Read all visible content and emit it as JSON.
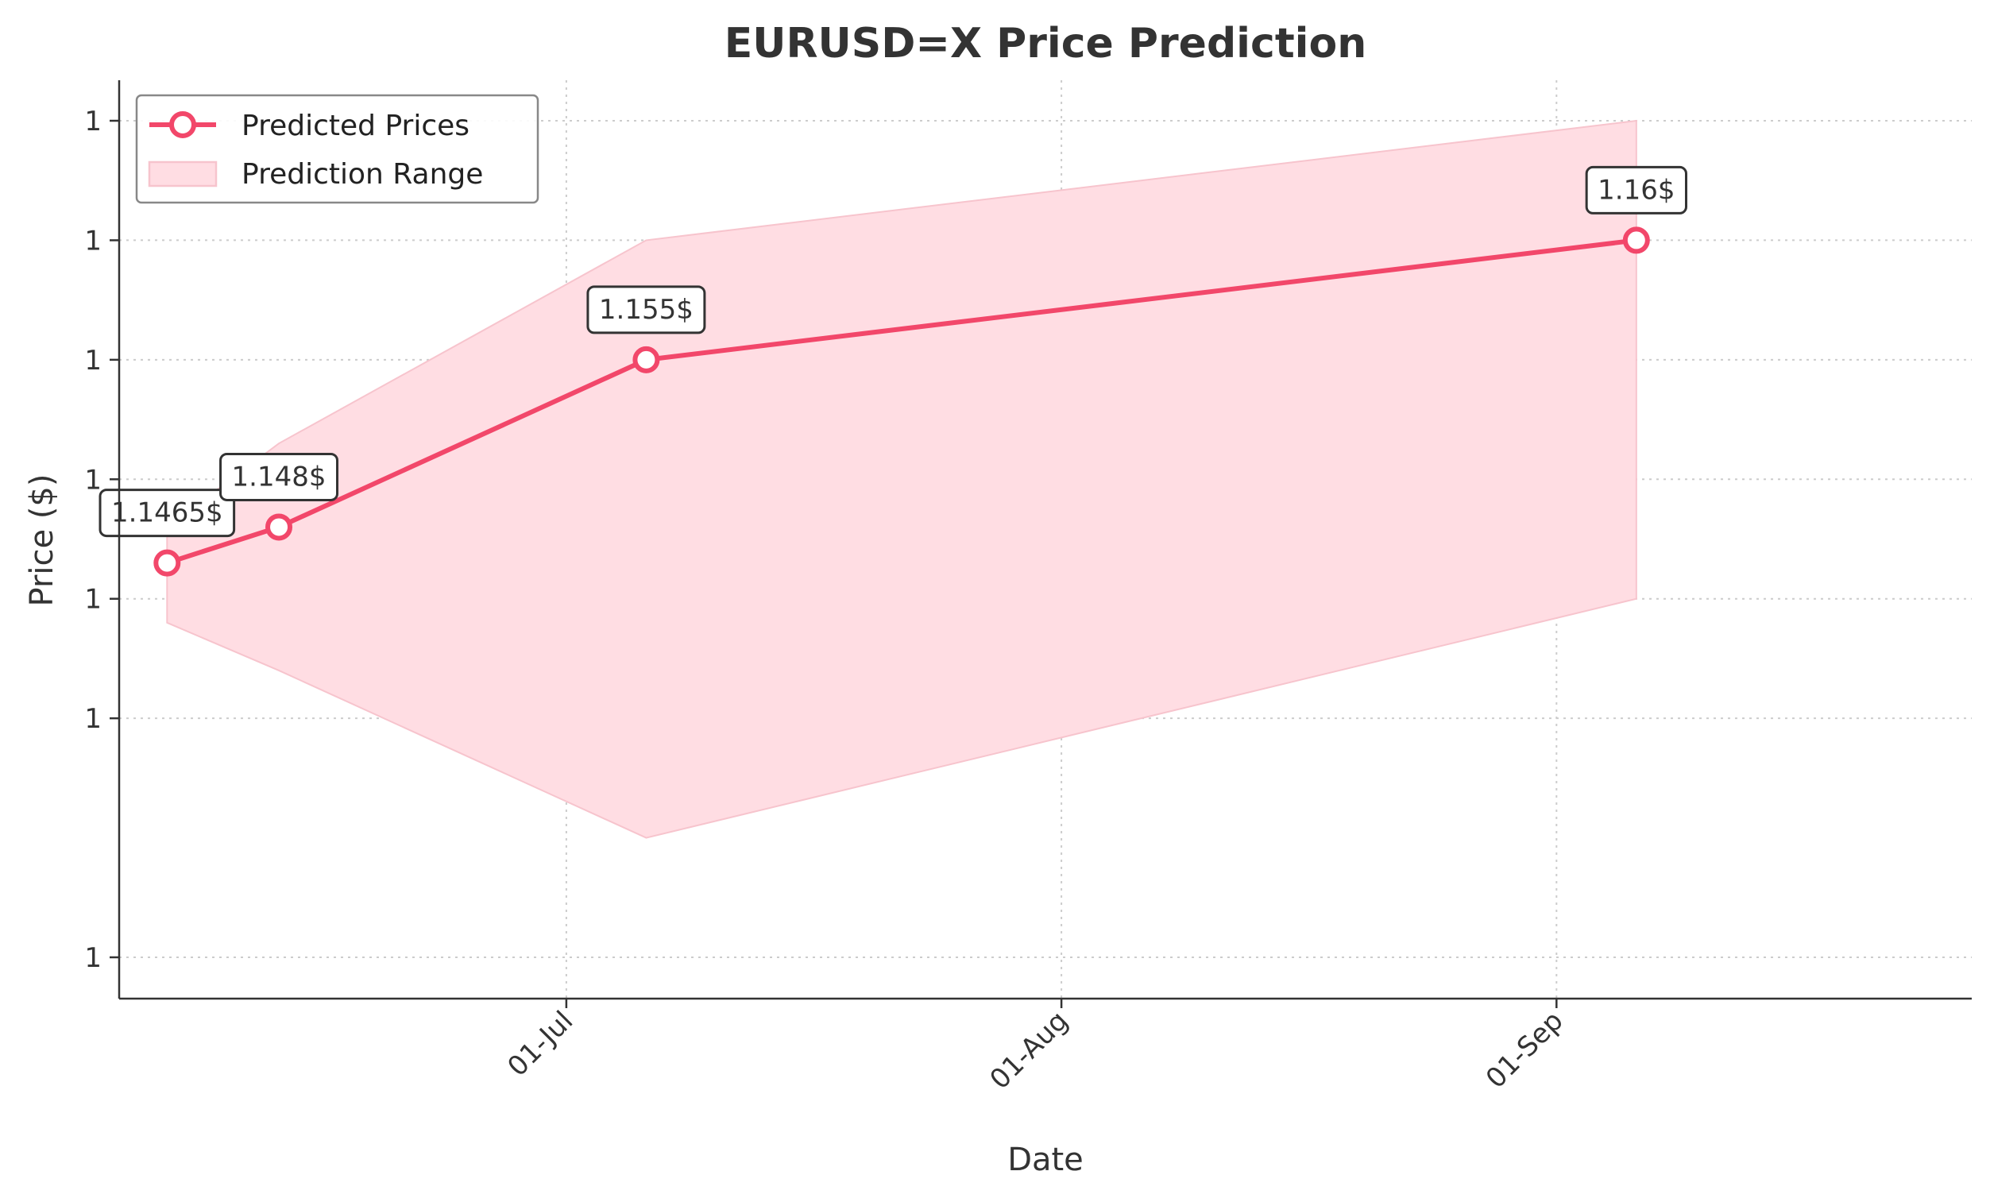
{
  "chart_data": {
    "type": "line",
    "title": "EURUSD=X Price Prediction",
    "xlabel": "Date",
    "ylabel": "Price ($)",
    "x_ticks": [
      {
        "date": "2025-07-01",
        "label": "01-Jul"
      },
      {
        "date": "2025-08-01",
        "label": "01-Aug"
      },
      {
        "date": "2025-09-01",
        "label": "01-Sep"
      }
    ],
    "y_ticks": [
      {
        "value": 1.13,
        "label": "1"
      },
      {
        "value": 1.14,
        "label": "1"
      },
      {
        "value": 1.145,
        "label": "1"
      },
      {
        "value": 1.15,
        "label": "1"
      },
      {
        "value": 1.155,
        "label": "1"
      },
      {
        "value": 1.16,
        "label": "1"
      },
      {
        "value": 1.165,
        "label": "1"
      }
    ],
    "xlim": [
      "2025-06-03",
      "2025-09-27"
    ],
    "ylim": [
      1.13,
      1.165
    ],
    "grid": true,
    "legend_position": "top-left",
    "colors": {
      "line": "#f2476a",
      "band_fill": "#ffdde3",
      "band_edge": "#f7c4cd"
    },
    "series": [
      {
        "name": "Predicted Prices",
        "x": [
          "2025-06-06",
          "2025-06-13",
          "2025-07-06",
          "2025-09-06"
        ],
        "y": [
          1.1465,
          1.148,
          1.155,
          1.16
        ],
        "labels": [
          "1.1465$",
          "1.148$",
          "1.155$",
          "1.16$"
        ]
      }
    ],
    "band": {
      "name": "Prediction Range",
      "x": [
        "2025-06-06",
        "2025-06-13",
        "2025-07-06",
        "2025-09-06"
      ],
      "lower": [
        1.144,
        1.142,
        1.135,
        1.145
      ],
      "upper": [
        1.148,
        1.1515,
        1.16,
        1.165
      ]
    }
  }
}
